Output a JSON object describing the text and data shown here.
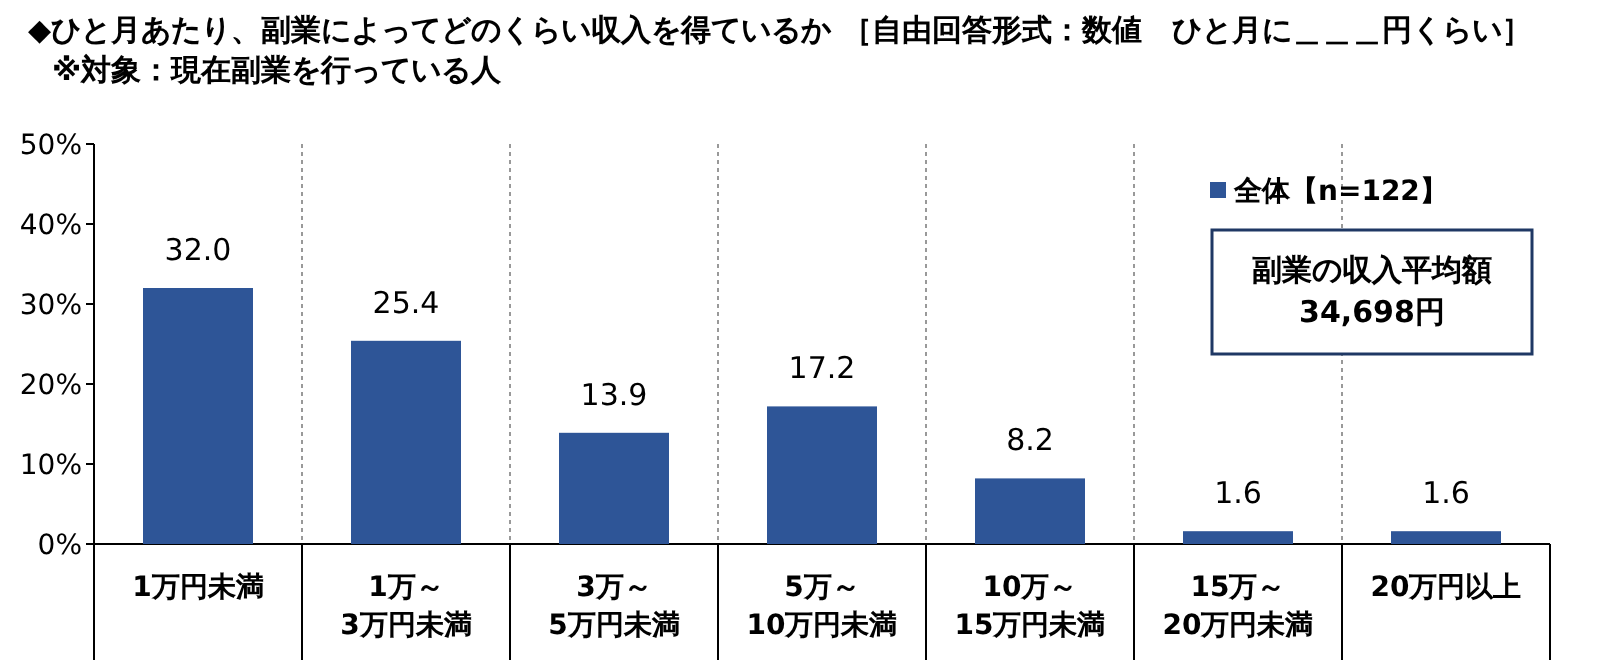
{
  "chart_data": {
    "type": "bar",
    "title": "◆ひと月あたり、副業によってどのくらい収入を得ているか ［自由回答形式：数値　ひと月に＿＿＿円くらい］",
    "subtitle": "※対象：現在副業を行っている人",
    "categories": [
      "1万円未満",
      "1万～\n3万円未満",
      "3万～\n5万円未満",
      "5万～\n10万円未満",
      "10万～\n15万円未満",
      "15万～\n20万円未満",
      "20万円以上"
    ],
    "series": [
      {
        "name": "全体【n=122】",
        "color": "#2e5597",
        "values": [
          32.0,
          25.4,
          13.9,
          17.2,
          8.2,
          1.6,
          1.6
        ],
        "value_labels": [
          "32.0",
          "25.4",
          "13.9",
          "17.2",
          "8.2",
          "1.6",
          "1.6"
        ]
      }
    ],
    "ylim": [
      0,
      50
    ],
    "yticks": [
      {
        "value": 0,
        "label": "0%"
      },
      {
        "value": 10,
        "label": "10%"
      },
      {
        "value": 20,
        "label": "20%"
      },
      {
        "value": 30,
        "label": "30%"
      },
      {
        "value": 40,
        "label": "40%"
      },
      {
        "value": 50,
        "label": "50%"
      }
    ],
    "grid": "x",
    "legend": "top right",
    "annotations": [
      "副業の収入平均額\n34,698円"
    ]
  }
}
